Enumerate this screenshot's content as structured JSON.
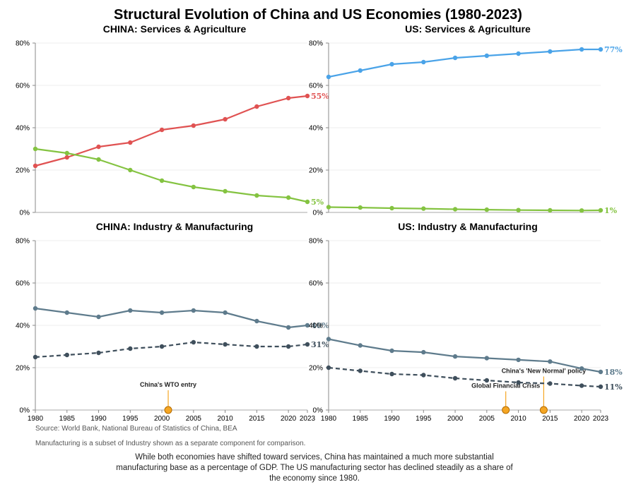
{
  "title": "Structural Evolution of China and US Economies (1980-2023)",
  "source": "Source: World Bank, National Bureau of Statistics of China, BEA",
  "note": "Manufacturing is a subset of Industry shown as a separate component for comparison.",
  "summary": "While both economies have shifted toward services, China has maintained a much more substantial manufacturing base as a percentage of GDP. The US manufacturing sector has declined steadily as a share of the economy since 1980.",
  "colors": {
    "china_services": "#e05252",
    "us_services": "#4aa3e8",
    "agriculture": "#84c341",
    "industry": "#5e7b8c",
    "manufacturing": "#3f4f5c",
    "event": "#f5a623"
  },
  "chart_data": [
    {
      "type": "line",
      "title": "CHINA: Services & Agriculture",
      "x": [
        1980,
        1985,
        1990,
        1995,
        2000,
        2005,
        2010,
        2015,
        2020,
        2023
      ],
      "ylim": [
        0,
        80
      ],
      "yticks": [
        "0%",
        "20%",
        "40%",
        "60%",
        "80%"
      ],
      "series": [
        {
          "key": "services",
          "values": [
            22,
            26,
            31,
            33,
            39,
            41,
            44,
            50,
            54,
            55
          ],
          "color": "#e05252",
          "style": "solid",
          "end_label": "55%"
        },
        {
          "key": "agriculture",
          "values": [
            30,
            28,
            25,
            20,
            15,
            12,
            10,
            8,
            7,
            5
          ],
          "color": "#84c341",
          "style": "solid",
          "end_label": "5%"
        }
      ],
      "annotations": []
    },
    {
      "type": "line",
      "title": "US: Services & Agriculture",
      "x": [
        1980,
        1985,
        1990,
        1995,
        2000,
        2005,
        2010,
        2015,
        2020,
        2023
      ],
      "ylim": [
        0,
        80
      ],
      "yticks": [
        "0%",
        "20%",
        "40%",
        "60%",
        "80%"
      ],
      "series": [
        {
          "key": "services",
          "values": [
            64,
            67,
            70,
            71,
            73,
            74,
            75,
            76,
            77,
            77
          ],
          "color": "#4aa3e8",
          "style": "solid",
          "end_label": "77%"
        },
        {
          "key": "agriculture",
          "values": [
            2.5,
            2.3,
            2.0,
            1.8,
            1.5,
            1.3,
            1.1,
            1.0,
            0.9,
            1.0
          ],
          "color": "#84c341",
          "style": "solid",
          "end_label": "1%"
        }
      ],
      "annotations": []
    },
    {
      "type": "line",
      "title": "CHINA: Industry & Manufacturing",
      "x": [
        1980,
        1985,
        1990,
        1995,
        2000,
        2005,
        2010,
        2015,
        2020,
        2023
      ],
      "ylim": [
        0,
        80
      ],
      "yticks": [
        "0%",
        "20%",
        "40%",
        "60%",
        "80%"
      ],
      "xticks": [
        "1980",
        "1985",
        "1990",
        "1995",
        "2000",
        "2005",
        "2010",
        "2015",
        "2020",
        "2023"
      ],
      "series": [
        {
          "key": "industry",
          "values": [
            48,
            46,
            44,
            47,
            46,
            47,
            46,
            42,
            39,
            40
          ],
          "color": "#5e7b8c",
          "style": "solid",
          "end_label": "40%"
        },
        {
          "key": "manufacturing",
          "values": [
            25,
            26,
            27,
            29,
            30,
            32,
            31,
            30,
            30,
            31
          ],
          "color": "#3f4f5c",
          "style": "dashed",
          "end_label": "31%"
        }
      ],
      "annotations": [
        {
          "year": 2001,
          "label": "China's WTO entry",
          "label_y": 11
        }
      ]
    },
    {
      "type": "line",
      "title": "US: Industry & Manufacturing",
      "x": [
        1980,
        1985,
        1990,
        1995,
        2000,
        2005,
        2010,
        2015,
        2020,
        2023
      ],
      "ylim": [
        0,
        80
      ],
      "yticks": [
        "0%",
        "20%",
        "40%",
        "60%",
        "80%"
      ],
      "xticks": [
        "1980",
        "1985",
        "1990",
        "1995",
        "2000",
        "2005",
        "2010",
        "2015",
        "2020",
        "2023"
      ],
      "series": [
        {
          "key": "industry",
          "values": [
            33.5,
            30.5,
            28,
            27.3,
            25.3,
            24.5,
            23.7,
            22.9,
            19.6,
            18
          ],
          "color": "#5e7b8c",
          "style": "solid",
          "end_label": "18%"
        },
        {
          "key": "manufacturing",
          "values": [
            20,
            18.5,
            17,
            16.5,
            15,
            14,
            13,
            12.5,
            11.5,
            11
          ],
          "color": "#3f4f5c",
          "style": "dashed",
          "end_label": "11%"
        }
      ],
      "annotations": [
        {
          "year": 2008,
          "label": "Global Financial Crisis",
          "label_y": 10.5
        },
        {
          "year": 2014,
          "label": "China's 'New Normal' policy",
          "label_y": 17.5
        }
      ]
    }
  ]
}
